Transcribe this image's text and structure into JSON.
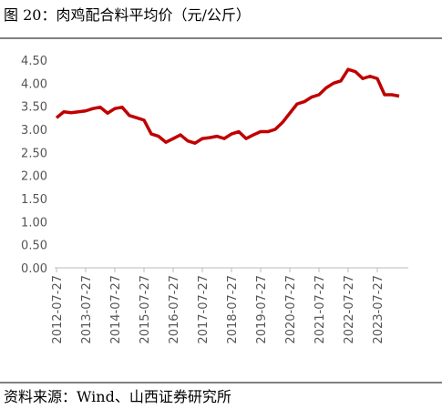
{
  "chart_data": {
    "type": "line",
    "title": "图 20：肉鸡配合料平均价（元/公斤）",
    "source": "资料来源：Wind、山西证券研究所",
    "categories": [
      "2012-07-27",
      null,
      null,
      null,
      "2013-07-27",
      null,
      null,
      null,
      "2014-07-27",
      null,
      null,
      null,
      "2015-07-27",
      null,
      null,
      null,
      "2016-07-27",
      null,
      null,
      null,
      "2017-07-27",
      null,
      null,
      null,
      "2018-07-27",
      null,
      null,
      null,
      "2019-07-27",
      null,
      null,
      null,
      "2020-07-27",
      null,
      null,
      null,
      "2021-07-27",
      null,
      null,
      null,
      "2022-07-27",
      null,
      null,
      null,
      "2023-07-27",
      null,
      null,
      null
    ],
    "series": [
      {
        "color": "#c00000",
        "values": [
          3.25,
          3.38,
          3.36,
          3.38,
          3.4,
          3.45,
          3.48,
          3.35,
          3.45,
          3.48,
          3.3,
          3.25,
          3.2,
          2.9,
          2.85,
          2.72,
          2.8,
          2.88,
          2.75,
          2.7,
          2.8,
          2.82,
          2.85,
          2.8,
          2.9,
          2.95,
          2.8,
          2.88,
          2.95,
          2.95,
          3.0,
          3.15,
          3.35,
          3.55,
          3.6,
          3.7,
          3.75,
          3.9,
          4.0,
          4.05,
          4.3,
          4.25,
          4.1,
          4.15,
          4.1,
          3.75,
          3.75,
          3.72
        ]
      }
    ],
    "ylim": [
      0,
      4.5
    ],
    "yticks": [
      {
        "value": 0,
        "label": "0.00"
      },
      {
        "value": 0.5,
        "label": "0.50"
      },
      {
        "value": 1,
        "label": "1.00"
      },
      {
        "value": 1.5,
        "label": "1.50"
      },
      {
        "value": 2,
        "label": "2.00"
      },
      {
        "value": 2.5,
        "label": "2.50"
      },
      {
        "value": 3,
        "label": "3.00"
      },
      {
        "value": 3.5,
        "label": "3.50"
      },
      {
        "value": 4,
        "label": "4.00"
      },
      {
        "value": 4.5,
        "label": "4.50"
      }
    ]
  }
}
